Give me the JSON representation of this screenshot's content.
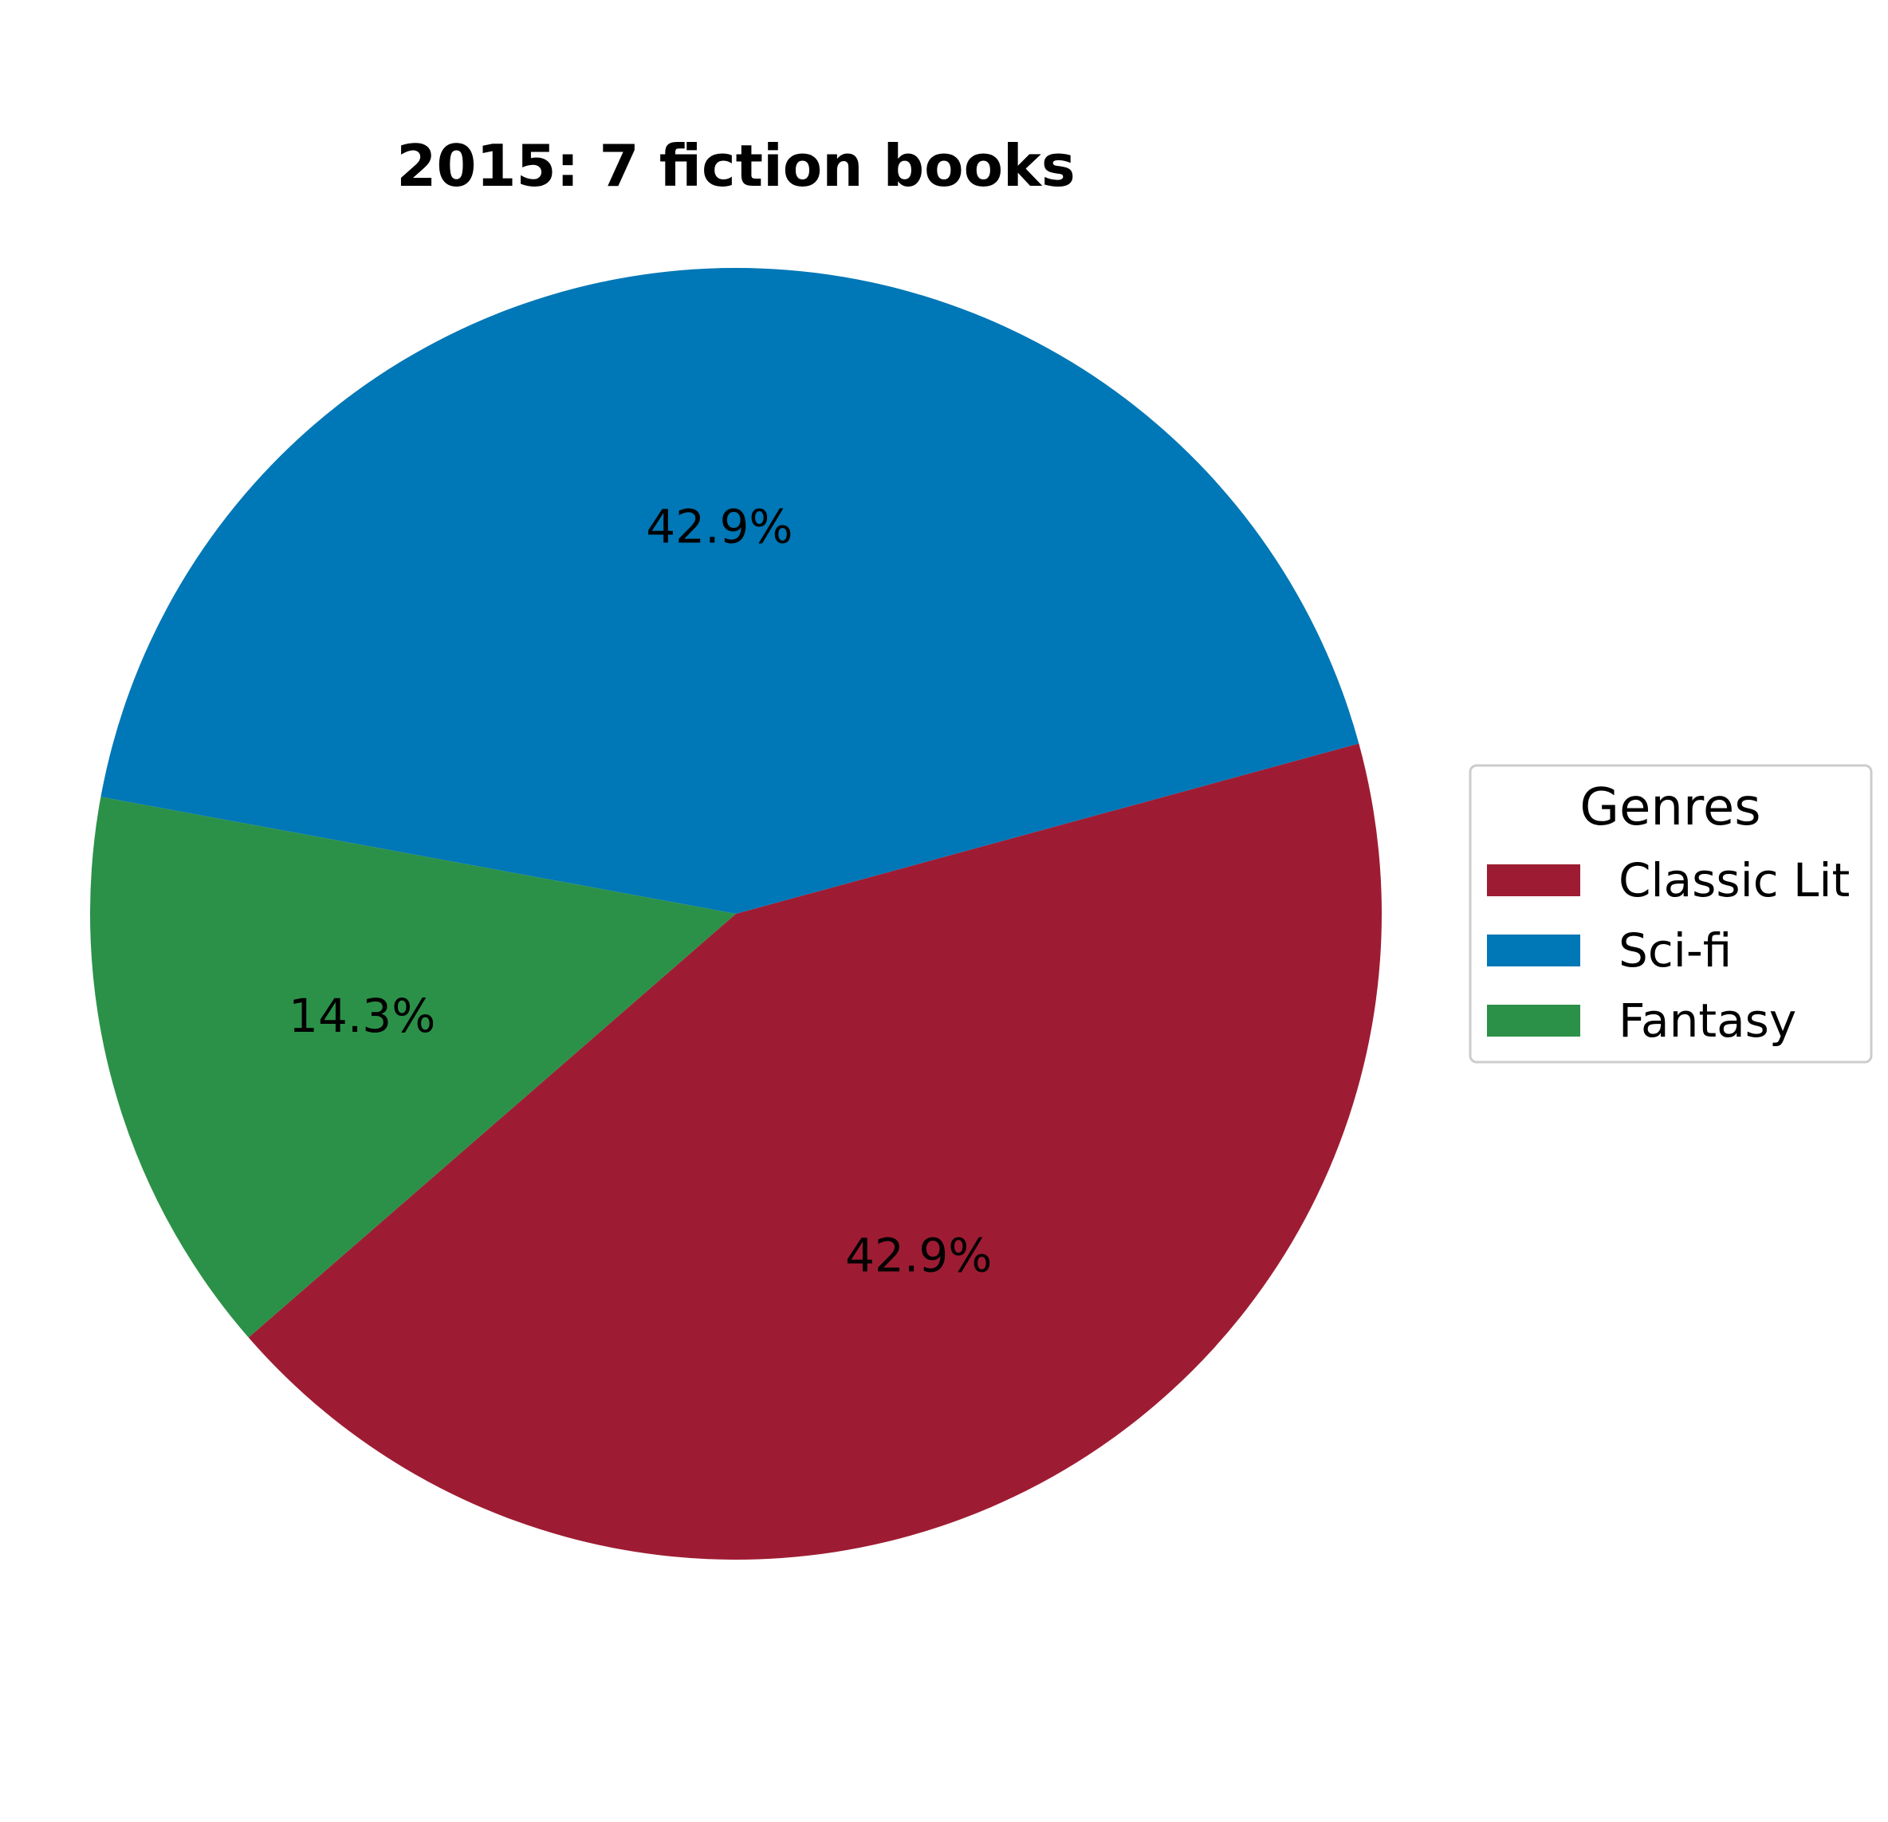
{
  "chart_data": {
    "type": "pie",
    "title": "2015: 7 fiction books",
    "categories": [
      "Classic Lit",
      "Sci-fi",
      "Fantasy"
    ],
    "values": [
      3,
      3,
      1
    ],
    "percent_labels": [
      "42.9%",
      "42.9%",
      "14.3%"
    ],
    "colors": [
      "#9E1C33",
      "#0077B6",
      "#2B9148"
    ],
    "legend": {
      "title": "Genres",
      "placement": "right",
      "entries": [
        "Classic Lit",
        "Sci-fi",
        "Fantasy"
      ]
    }
  }
}
